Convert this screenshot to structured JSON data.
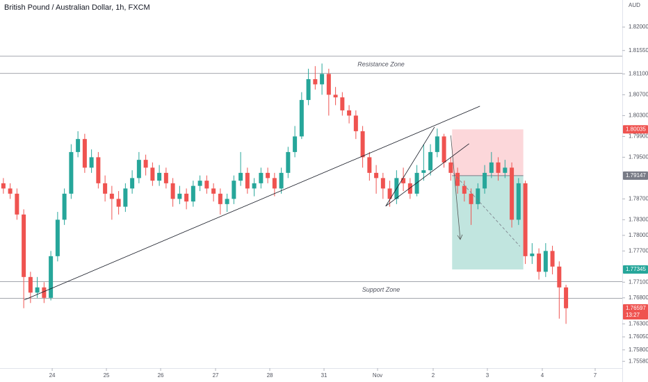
{
  "chart_data": {
    "type": "candlestick",
    "title": "British Pound / Australian Dollar, 1h, FXCM",
    "currency": "AUD",
    "up_color": "#26a69a",
    "down_color": "#ef5350",
    "x": [
      0,
      1,
      2,
      3,
      4,
      5,
      6,
      7,
      8,
      9,
      10,
      11,
      12,
      13,
      14,
      15,
      16,
      17,
      18,
      19,
      20,
      21,
      22,
      23,
      24,
      25,
      26,
      27,
      28,
      29,
      30,
      31,
      32,
      33,
      34,
      35,
      36,
      37,
      38,
      39,
      40,
      41,
      42,
      43,
      44,
      45,
      46,
      47,
      48,
      49,
      50,
      51,
      52,
      53,
      54,
      55,
      56,
      57,
      58,
      59,
      60,
      61,
      62,
      63,
      64,
      65,
      66,
      67,
      68,
      69,
      70,
      71,
      72,
      73,
      74,
      75,
      76,
      77,
      78,
      79,
      80,
      81,
      82,
      83
    ],
    "open": [
      1.79,
      1.789,
      1.788,
      1.784,
      1.772,
      1.769,
      1.77,
      1.768,
      1.776,
      1.783,
      1.788,
      1.796,
      1.7985,
      1.793,
      1.795,
      1.79,
      1.788,
      1.787,
      1.7855,
      1.789,
      1.791,
      1.7945,
      1.793,
      1.7905,
      1.792,
      1.79,
      1.787,
      1.788,
      1.7865,
      1.7895,
      1.7905,
      1.789,
      1.788,
      1.786,
      1.787,
      1.7905,
      1.792,
      1.789,
      1.79,
      1.792,
      1.791,
      1.789,
      1.792,
      1.796,
      1.799,
      1.806,
      1.81,
      1.809,
      1.811,
      1.807,
      1.8065,
      1.804,
      1.803,
      1.8,
      1.795,
      1.792,
      1.791,
      1.789,
      1.787,
      1.791,
      1.79,
      1.788,
      1.792,
      1.7925,
      1.796,
      1.799,
      1.794,
      1.792,
      1.7895,
      1.788,
      1.786,
      1.789,
      1.792,
      1.794,
      1.792,
      1.793,
      1.783,
      1.79,
      1.776,
      1.7765,
      1.773,
      1.777,
      1.774,
      1.77
    ],
    "high": [
      1.791,
      1.79,
      1.789,
      1.785,
      1.773,
      1.772,
      1.771,
      1.777,
      1.7845,
      1.789,
      1.7975,
      1.8,
      1.7995,
      1.7965,
      1.796,
      1.7915,
      1.7895,
      1.7885,
      1.79,
      1.7925,
      1.796,
      1.7955,
      1.794,
      1.7935,
      1.793,
      1.791,
      1.7895,
      1.789,
      1.7905,
      1.7915,
      1.7915,
      1.79,
      1.789,
      1.788,
      1.7915,
      1.796,
      1.793,
      1.791,
      1.793,
      1.793,
      1.792,
      1.793,
      1.797,
      1.801,
      1.8075,
      1.812,
      1.8125,
      1.813,
      1.812,
      1.8085,
      1.8075,
      1.805,
      1.804,
      1.801,
      1.796,
      1.7935,
      1.792,
      1.7905,
      1.7925,
      1.793,
      1.791,
      1.7935,
      1.7975,
      1.7975,
      1.8005,
      1.7995,
      1.795,
      1.793,
      1.7905,
      1.789,
      1.79,
      1.7935,
      1.796,
      1.795,
      1.7945,
      1.794,
      1.791,
      1.7905,
      1.7785,
      1.7775,
      1.7785,
      1.778,
      1.775,
      1.7705
    ],
    "low": [
      1.788,
      1.787,
      1.783,
      1.766,
      1.767,
      1.768,
      1.767,
      1.7675,
      1.775,
      1.782,
      1.787,
      1.795,
      1.792,
      1.792,
      1.789,
      1.7865,
      1.783,
      1.784,
      1.7845,
      1.788,
      1.79,
      1.7915,
      1.7895,
      1.7895,
      1.789,
      1.7855,
      1.786,
      1.785,
      1.7855,
      1.7885,
      1.788,
      1.7865,
      1.784,
      1.7845,
      1.786,
      1.7895,
      1.788,
      1.7875,
      1.789,
      1.79,
      1.7875,
      1.788,
      1.791,
      1.795,
      1.7985,
      1.805,
      1.808,
      1.807,
      1.803,
      1.805,
      1.803,
      1.8015,
      1.7985,
      1.793,
      1.7905,
      1.788,
      1.787,
      1.7855,
      1.786,
      1.7885,
      1.787,
      1.7875,
      1.7905,
      1.7915,
      1.795,
      1.793,
      1.7905,
      1.788,
      1.7865,
      1.782,
      1.785,
      1.788,
      1.791,
      1.7905,
      1.791,
      1.7815,
      1.782,
      1.7745,
      1.7745,
      1.7715,
      1.772,
      1.7725,
      1.764,
      1.763
    ],
    "close": [
      1.789,
      1.788,
      1.784,
      1.772,
      1.769,
      1.77,
      1.768,
      1.776,
      1.783,
      1.788,
      1.796,
      1.7985,
      1.793,
      1.795,
      1.79,
      1.788,
      1.787,
      1.7855,
      1.789,
      1.791,
      1.7945,
      1.793,
      1.7905,
      1.792,
      1.79,
      1.787,
      1.788,
      1.7865,
      1.7895,
      1.7905,
      1.789,
      1.788,
      1.786,
      1.787,
      1.7905,
      1.792,
      1.789,
      1.79,
      1.792,
      1.791,
      1.789,
      1.792,
      1.796,
      1.799,
      1.806,
      1.81,
      1.809,
      1.811,
      1.807,
      1.8065,
      1.804,
      1.803,
      1.8,
      1.795,
      1.792,
      1.791,
      1.789,
      1.787,
      1.791,
      1.79,
      1.788,
      1.792,
      1.7925,
      1.796,
      1.799,
      1.794,
      1.792,
      1.7895,
      1.788,
      1.786,
      1.789,
      1.792,
      1.794,
      1.792,
      1.793,
      1.783,
      1.79,
      1.776,
      1.7765,
      1.773,
      1.777,
      1.774,
      1.77,
      1.766
    ],
    "xlim": [
      -0.5,
      91.3
    ],
    "xticks": [
      {
        "value": 7.2,
        "label": "24"
      },
      {
        "value": 15.2,
        "label": "25"
      },
      {
        "value": 23.2,
        "label": "26"
      },
      {
        "value": 31.3,
        "label": "27"
      },
      {
        "value": 39.3,
        "label": "28"
      },
      {
        "value": 47.3,
        "label": "31"
      },
      {
        "value": 55.2,
        "label": "Nov"
      },
      {
        "value": 63.4,
        "label": "2"
      },
      {
        "value": 71.4,
        "label": "3"
      },
      {
        "value": 79.5,
        "label": "4"
      },
      {
        "value": 87.3,
        "label": "7"
      }
    ],
    "ylim": [
      1.7545,
      1.8252
    ],
    "yticks": [
      {
        "value": 1.82,
        "label": "1.82000"
      },
      {
        "value": 1.8155,
        "label": "1.81550"
      },
      {
        "value": 1.811,
        "label": "1.81100"
      },
      {
        "value": 1.807,
        "label": "1.80700"
      },
      {
        "value": 1.803,
        "label": "1.80300"
      },
      {
        "value": 1.799,
        "label": "1.79900"
      },
      {
        "value": 1.795,
        "label": "1.79500"
      },
      {
        "value": 1.787,
        "label": "1.78700"
      },
      {
        "value": 1.783,
        "label": "1.78300"
      },
      {
        "value": 1.78,
        "label": "1.78000"
      },
      {
        "value": 1.777,
        "label": "1.77700"
      },
      {
        "value": 1.771,
        "label": "1.77100"
      },
      {
        "value": 1.768,
        "label": "1.76800"
      },
      {
        "value": 1.763,
        "label": "1.76300"
      },
      {
        "value": 1.7605,
        "label": "1.76050"
      },
      {
        "value": 1.758,
        "label": "1.75800"
      },
      {
        "value": 1.7558,
        "label": "1.75580"
      }
    ],
    "zones": [
      {
        "label": "Resistance Zone",
        "top": 1.8144,
        "bottom": 1.8111
      },
      {
        "label": "Support Zone",
        "top": 1.7711,
        "bottom": 1.7679
      }
    ],
    "trendlines": [
      {
        "x": [
          3.1,
          70.3
        ],
        "y": [
          1.7676,
          1.8048
        ]
      },
      {
        "x": [
          56.4,
          63.6
        ],
        "y": [
          1.7856,
          1.8008
        ]
      },
      {
        "x": [
          56.4,
          68.7
        ],
        "y": [
          1.7856,
          1.7976
        ]
      }
    ],
    "position": {
      "x": [
        66.2,
        76.7
      ],
      "stop": 1.80035,
      "entry": 1.79147,
      "target": 1.77345
    },
    "arrow": {
      "x": [
        66.0,
        67.4
      ],
      "y": [
        1.7992,
        1.7792
      ]
    },
    "dashed": {
      "x": [
        66.4,
        76.2
      ],
      "y": [
        1.7919,
        1.7779
      ]
    },
    "price_tags": [
      {
        "value": 1.80035,
        "label": "1.80035",
        "color": "#ef5350"
      },
      {
        "value": 1.79147,
        "label": "1.79147",
        "color": "#787b86"
      },
      {
        "value": 1.77345,
        "label": "1.77345",
        "color": "#26a69a"
      },
      {
        "value": 1.76597,
        "label": "1.76597",
        "sub": "13:27",
        "color": "#ef5350"
      }
    ]
  }
}
